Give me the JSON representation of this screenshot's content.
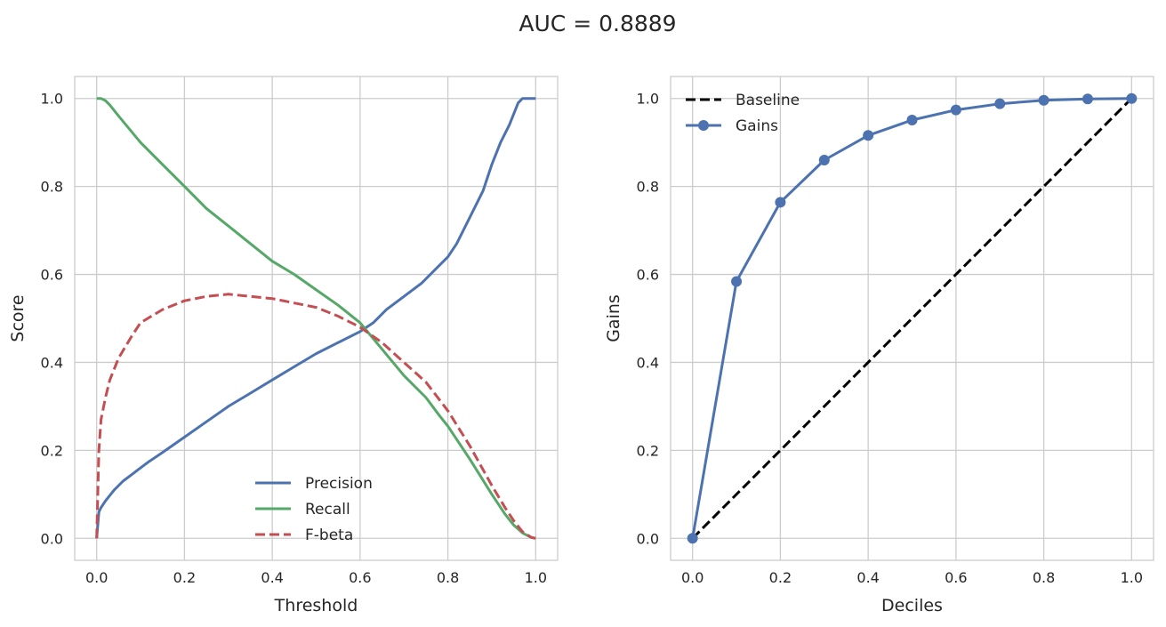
{
  "figure": {
    "title": "AUC = 0.8889"
  },
  "colors": {
    "precision": "#4c72b0",
    "recall": "#55a868",
    "fbeta": "#c44e52",
    "baseline": "#000000",
    "gains": "#4c72b0",
    "grid": "#cccccc",
    "spine": "#cccccc"
  },
  "chart_data": [
    {
      "type": "line",
      "title": "",
      "xlabel": "Threshold",
      "ylabel": "Score",
      "xlim": [
        -0.05,
        1.05
      ],
      "ylim": [
        -0.05,
        1.05
      ],
      "xticks": [
        0.0,
        0.2,
        0.4,
        0.6,
        0.8,
        1.0
      ],
      "xtick_labels": [
        "0.0",
        "0.2",
        "0.4",
        "0.6",
        "0.8",
        "1.0"
      ],
      "yticks": [
        0.0,
        0.2,
        0.4,
        0.6,
        0.8,
        1.0
      ],
      "ytick_labels": [
        "0.0",
        "0.2",
        "0.4",
        "0.6",
        "0.8",
        "1.0"
      ],
      "grid": true,
      "legend": "lower-center",
      "series": [
        {
          "name": "Precision",
          "style": "solid",
          "x": [
            0.0,
            0.005,
            0.01,
            0.02,
            0.04,
            0.06,
            0.08,
            0.1,
            0.12,
            0.15,
            0.2,
            0.25,
            0.3,
            0.35,
            0.4,
            0.45,
            0.5,
            0.55,
            0.6,
            0.63,
            0.66,
            0.7,
            0.74,
            0.78,
            0.8,
            0.82,
            0.85,
            0.88,
            0.9,
            0.92,
            0.94,
            0.96,
            0.97,
            0.98,
            1.0
          ],
          "y": [
            0.0,
            0.06,
            0.07,
            0.085,
            0.11,
            0.13,
            0.145,
            0.16,
            0.175,
            0.195,
            0.23,
            0.265,
            0.3,
            0.33,
            0.36,
            0.39,
            0.42,
            0.445,
            0.47,
            0.49,
            0.52,
            0.55,
            0.58,
            0.62,
            0.64,
            0.67,
            0.73,
            0.79,
            0.85,
            0.9,
            0.94,
            0.99,
            1.0,
            1.0,
            1.0
          ]
        },
        {
          "name": "Recall",
          "style": "solid",
          "x": [
            0.0,
            0.01,
            0.02,
            0.03,
            0.05,
            0.1,
            0.15,
            0.2,
            0.25,
            0.3,
            0.35,
            0.4,
            0.45,
            0.5,
            0.55,
            0.6,
            0.65,
            0.7,
            0.75,
            0.78,
            0.8,
            0.85,
            0.9,
            0.93,
            0.95,
            0.97,
            0.99,
            1.0
          ],
          "y": [
            1.0,
            1.0,
            0.995,
            0.985,
            0.96,
            0.9,
            0.85,
            0.8,
            0.75,
            0.71,
            0.67,
            0.63,
            0.6,
            0.565,
            0.53,
            0.49,
            0.43,
            0.37,
            0.32,
            0.28,
            0.255,
            0.18,
            0.1,
            0.055,
            0.03,
            0.012,
            0.002,
            0.0
          ]
        },
        {
          "name": "F-beta",
          "style": "dashed",
          "x": [
            0.0,
            0.005,
            0.01,
            0.02,
            0.03,
            0.05,
            0.08,
            0.1,
            0.15,
            0.2,
            0.25,
            0.3,
            0.35,
            0.4,
            0.45,
            0.5,
            0.55,
            0.6,
            0.65,
            0.7,
            0.75,
            0.8,
            0.85,
            0.9,
            0.93,
            0.95,
            0.97,
            0.99,
            1.0
          ],
          "y": [
            0.0,
            0.2,
            0.27,
            0.32,
            0.36,
            0.41,
            0.46,
            0.49,
            0.52,
            0.54,
            0.55,
            0.555,
            0.55,
            0.545,
            0.535,
            0.525,
            0.505,
            0.48,
            0.445,
            0.4,
            0.355,
            0.29,
            0.21,
            0.12,
            0.07,
            0.04,
            0.015,
            0.002,
            0.0
          ]
        }
      ]
    },
    {
      "type": "line",
      "title": "",
      "xlabel": "Deciles",
      "ylabel": "Gains",
      "xlim": [
        -0.05,
        1.05
      ],
      "ylim": [
        -0.05,
        1.05
      ],
      "xticks": [
        0.0,
        0.2,
        0.4,
        0.6,
        0.8,
        1.0
      ],
      "xtick_labels": [
        "0.0",
        "0.2",
        "0.4",
        "0.6",
        "0.8",
        "1.0"
      ],
      "yticks": [
        0.0,
        0.2,
        0.4,
        0.6,
        0.8,
        1.0
      ],
      "ytick_labels": [
        "0.0",
        "0.2",
        "0.4",
        "0.6",
        "0.8",
        "1.0"
      ],
      "grid": true,
      "legend": "upper-left",
      "series": [
        {
          "name": "Baseline",
          "style": "dashed",
          "x": [
            0.0,
            1.0
          ],
          "y": [
            0.0,
            1.0
          ]
        },
        {
          "name": "Gains",
          "style": "solid-markers",
          "x": [
            0.0,
            0.1,
            0.2,
            0.3,
            0.4,
            0.5,
            0.6,
            0.7,
            0.8,
            0.9,
            1.0
          ],
          "y": [
            0.0,
            0.584,
            0.764,
            0.86,
            0.916,
            0.951,
            0.974,
            0.988,
            0.996,
            0.999,
            1.0
          ]
        }
      ]
    }
  ]
}
